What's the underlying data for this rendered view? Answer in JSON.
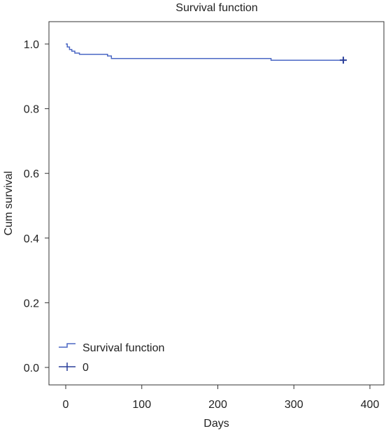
{
  "chart_data": {
    "type": "line",
    "title": "Survival function",
    "xlabel": "Days",
    "ylabel": "Cum survival",
    "xlim": [
      0,
      420
    ],
    "ylim": [
      0,
      1.0
    ],
    "x_ticks": [
      0,
      100,
      200,
      300,
      400
    ],
    "x_tick_labels": [
      "0",
      "100",
      "200",
      "300",
      "400"
    ],
    "y_ticks": [
      0.0,
      0.2,
      0.4,
      0.6,
      0.8,
      1.0
    ],
    "y_tick_labels": [
      "0.0",
      "0.2",
      "0.4",
      "0.6",
      "0.8",
      "1.0"
    ],
    "grid": false,
    "legend_position": "bottom-left",
    "series": [
      {
        "name": "Survival function",
        "kind": "step",
        "color": "#4a67c4",
        "x": [
          0,
          2,
          2,
          5,
          5,
          8,
          8,
          12,
          12,
          18,
          18,
          55,
          55,
          60,
          60,
          270,
          270,
          365
        ],
        "y": [
          1.0,
          1.0,
          0.991,
          0.991,
          0.983,
          0.983,
          0.978,
          0.978,
          0.972,
          0.972,
          0.968,
          0.968,
          0.963,
          0.963,
          0.955,
          0.955,
          0.95,
          0.95
        ]
      },
      {
        "name": "0",
        "kind": "censored",
        "color": "#2a3f9a",
        "x": [
          365
        ],
        "y": [
          0.95
        ]
      }
    ]
  }
}
